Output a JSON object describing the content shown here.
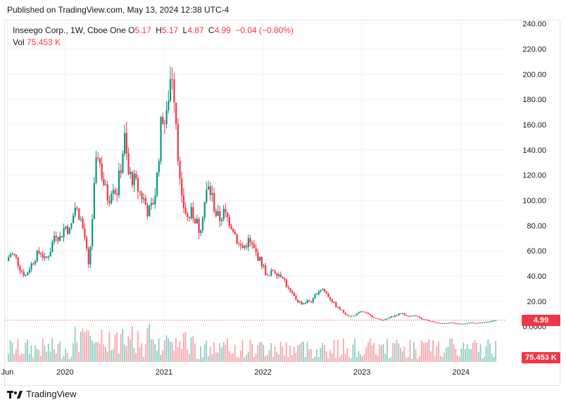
{
  "header": {
    "published": "Published on TradingView.com, May 13, 2024 12:38 UTC-4"
  },
  "legend": {
    "title": "Inseego Corp., 1W, Cboe One",
    "o_label": "O",
    "o_value": "5.17",
    "h_label": "H",
    "h_value": "5.17",
    "l_label": "L",
    "l_value": "4.87",
    "c_label": "C",
    "c_value": "4.99",
    "change": "−0.04 (−0.80%)",
    "vol_label": "Vol",
    "vol_value": "75.453 K"
  },
  "price_tag": {
    "price": "4.99",
    "volume": "75.453 K"
  },
  "footer": {
    "brand": "TradingView"
  },
  "colors": {
    "up": "#089981",
    "down": "#f23645",
    "up_vol": "#8ccfc4",
    "down_vol": "#f5a6ac",
    "grid": "#f0f3fa"
  },
  "chart_data": {
    "type": "candlestick",
    "ylim": [
      -8,
      242
    ],
    "y_ticks": [
      "240.00",
      "220.00",
      "200.00",
      "180.00",
      "160.00",
      "140.00",
      "120.00",
      "100.00",
      "80.00",
      "60.00",
      "40.00",
      "20.00",
      "0.0000"
    ],
    "y_tick_values": [
      240,
      220,
      200,
      180,
      160,
      140,
      120,
      100,
      80,
      60,
      40,
      20,
      0
    ],
    "x_ticks": [
      "Jun",
      "2020",
      "2021",
      "2022",
      "2023",
      "2024"
    ],
    "x_tick_dates": [
      2019.417,
      2020.0,
      2021.0,
      2022.0,
      2023.0,
      2024.0
    ],
    "x_range": [
      2019.4,
      2024.45
    ],
    "last_close": 4.99,
    "last_volume": "75.453 K",
    "close_path": [
      [
        2019.41,
        52
      ],
      [
        2019.45,
        58
      ],
      [
        2019.5,
        55
      ],
      [
        2019.55,
        45
      ],
      [
        2019.6,
        40
      ],
      [
        2019.65,
        48
      ],
      [
        2019.7,
        55
      ],
      [
        2019.75,
        60
      ],
      [
        2019.8,
        52
      ],
      [
        2019.85,
        60
      ],
      [
        2019.9,
        75
      ],
      [
        2019.95,
        70
      ],
      [
        2020.0,
        80
      ],
      [
        2020.05,
        75
      ],
      [
        2020.1,
        95
      ],
      [
        2020.15,
        88
      ],
      [
        2020.2,
        70
      ],
      [
        2020.24,
        45
      ],
      [
        2020.27,
        80
      ],
      [
        2020.3,
        115
      ],
      [
        2020.33,
        140
      ],
      [
        2020.36,
        125
      ],
      [
        2020.4,
        110
      ],
      [
        2020.44,
        100
      ],
      [
        2020.48,
        115
      ],
      [
        2020.52,
        105
      ],
      [
        2020.56,
        125
      ],
      [
        2020.6,
        150
      ],
      [
        2020.64,
        120
      ],
      [
        2020.68,
        118
      ],
      [
        2020.72,
        112
      ],
      [
        2020.76,
        105
      ],
      [
        2020.8,
        100
      ],
      [
        2020.84,
        90
      ],
      [
        2020.88,
        95
      ],
      [
        2020.92,
        110
      ],
      [
        2020.95,
        140
      ],
      [
        2020.98,
        170
      ],
      [
        2021.02,
        158
      ],
      [
        2021.05,
        190
      ],
      [
        2021.08,
        205
      ],
      [
        2021.11,
        180
      ],
      [
        2021.14,
        140
      ],
      [
        2021.17,
        100
      ],
      [
        2021.2,
        95
      ],
      [
        2021.24,
        85
      ],
      [
        2021.28,
        90
      ],
      [
        2021.32,
        85
      ],
      [
        2021.36,
        75
      ],
      [
        2021.4,
        95
      ],
      [
        2021.44,
        110
      ],
      [
        2021.48,
        105
      ],
      [
        2021.52,
        90
      ],
      [
        2021.56,
        85
      ],
      [
        2021.6,
        90
      ],
      [
        2021.65,
        85
      ],
      [
        2021.7,
        78
      ],
      [
        2021.75,
        65
      ],
      [
        2021.8,
        62
      ],
      [
        2021.85,
        68
      ],
      [
        2021.9,
        62
      ],
      [
        2021.95,
        55
      ],
      [
        2022.0,
        48
      ],
      [
        2022.05,
        38
      ],
      [
        2022.1,
        45
      ],
      [
        2022.15,
        42
      ],
      [
        2022.2,
        40
      ],
      [
        2022.25,
        30
      ],
      [
        2022.3,
        25
      ],
      [
        2022.35,
        20
      ],
      [
        2022.4,
        18
      ],
      [
        2022.45,
        20
      ],
      [
        2022.5,
        20
      ],
      [
        2022.55,
        28
      ],
      [
        2022.6,
        30
      ],
      [
        2022.65,
        25
      ],
      [
        2022.7,
        20
      ],
      [
        2022.75,
        15
      ],
      [
        2022.8,
        12
      ],
      [
        2022.85,
        9
      ],
      [
        2022.9,
        8
      ],
      [
        2022.95,
        10
      ],
      [
        2023.0,
        12
      ],
      [
        2023.05,
        10
      ],
      [
        2023.1,
        8
      ],
      [
        2023.15,
        6
      ],
      [
        2023.2,
        5
      ],
      [
        2023.25,
        6
      ],
      [
        2023.3,
        8
      ],
      [
        2023.35,
        9
      ],
      [
        2023.4,
        11
      ],
      [
        2023.45,
        8
      ],
      [
        2023.5,
        9
      ],
      [
        2023.55,
        8
      ],
      [
        2023.6,
        6
      ],
      [
        2023.65,
        5
      ],
      [
        2023.7,
        4
      ],
      [
        2023.75,
        3
      ],
      [
        2023.8,
        2.5
      ],
      [
        2023.85,
        2.8
      ],
      [
        2023.9,
        3
      ],
      [
        2023.95,
        2.4
      ],
      [
        2024.0,
        2.2
      ],
      [
        2024.05,
        2.3
      ],
      [
        2024.1,
        3
      ],
      [
        2024.15,
        2.5
      ],
      [
        2024.2,
        3
      ],
      [
        2024.25,
        3.5
      ],
      [
        2024.3,
        3.8
      ],
      [
        2024.35,
        5.2
      ],
      [
        2024.36,
        4.99
      ]
    ]
  }
}
